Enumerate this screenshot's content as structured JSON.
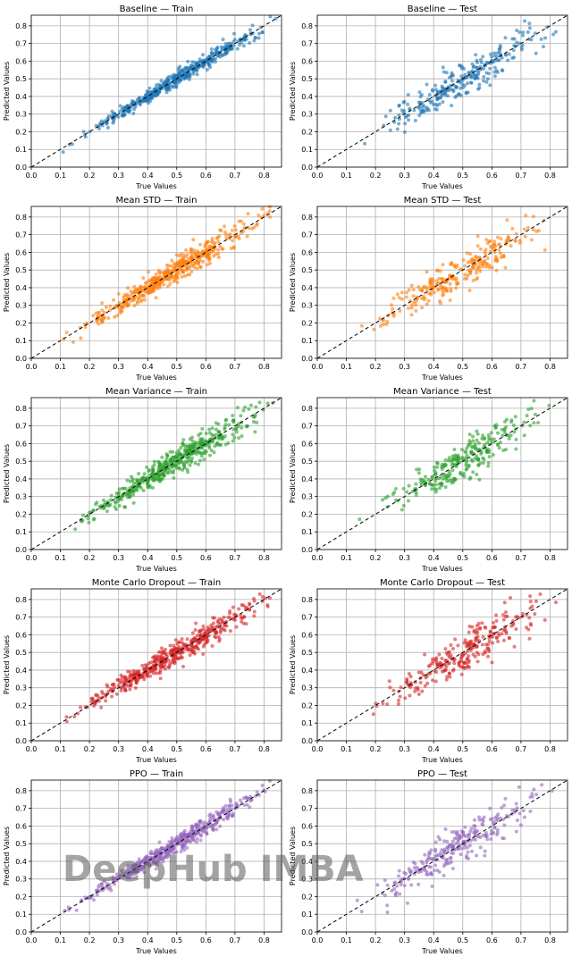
{
  "watermark": "DeepHub IMBA",
  "axis": {
    "xlabel": "True Values",
    "ylabel": "Predicted Values",
    "xlim": [
      0.0,
      0.86
    ],
    "ylim": [
      0.0,
      0.86
    ],
    "ticks": [
      "0.0",
      "0.1",
      "0.2",
      "0.3",
      "0.4",
      "0.5",
      "0.6",
      "0.7",
      "0.8"
    ],
    "grid": true,
    "reference_line": "y = x dashed black"
  },
  "chart_data": [
    {
      "type": "scatter",
      "title": "Baseline — Train",
      "method": "Baseline",
      "split": "Train",
      "color": "#1f77b4",
      "n": 480,
      "spread": 0.018,
      "seed": 11,
      "xrange": [
        0.02,
        0.84
      ]
    },
    {
      "type": "scatter",
      "title": "Baseline — Test",
      "method": "Baseline",
      "split": "Test",
      "color": "#1f77b4",
      "n": 260,
      "spread": 0.045,
      "seed": 12,
      "xrange": [
        0.06,
        0.82
      ]
    },
    {
      "type": "scatter",
      "title": "Mean STD — Train",
      "method": "Mean STD",
      "split": "Train",
      "color": "#ff7f0e",
      "n": 480,
      "spread": 0.03,
      "seed": 21,
      "xrange": [
        0.02,
        0.82
      ]
    },
    {
      "type": "scatter",
      "title": "Mean STD — Test",
      "method": "Mean STD",
      "split": "Test",
      "color": "#ff7f0e",
      "n": 260,
      "spread": 0.045,
      "seed": 22,
      "xrange": [
        0.06,
        0.82
      ]
    },
    {
      "type": "scatter",
      "title": "Mean Variance — Train",
      "method": "Mean Variance",
      "split": "Train",
      "color": "#2ca02c",
      "n": 480,
      "spread": 0.033,
      "seed": 31,
      "xrange": [
        0.02,
        0.83
      ]
    },
    {
      "type": "scatter",
      "title": "Mean Variance — Test",
      "method": "Mean Variance",
      "split": "Test",
      "color": "#2ca02c",
      "n": 260,
      "spread": 0.05,
      "seed": 32,
      "xrange": [
        0.06,
        0.82
      ]
    },
    {
      "type": "scatter",
      "title": "Monte Carlo Dropout — Train",
      "method": "Monte Carlo Dropout",
      "split": "Train",
      "color": "#d62728",
      "n": 480,
      "spread": 0.03,
      "seed": 41,
      "xrange": [
        0.02,
        0.82
      ]
    },
    {
      "type": "scatter",
      "title": "Monte Carlo Dropout — Test",
      "method": "Monte Carlo Dropout",
      "split": "Test",
      "color": "#d62728",
      "n": 260,
      "spread": 0.05,
      "seed": 42,
      "xrange": [
        0.06,
        0.82
      ]
    },
    {
      "type": "scatter",
      "title": "PPO — Train",
      "method": "PPO",
      "split": "Train",
      "color": "#9467bd",
      "n": 480,
      "spread": 0.022,
      "seed": 51,
      "xrange": [
        0.02,
        0.82
      ]
    },
    {
      "type": "scatter",
      "title": "PPO — Test",
      "method": "PPO",
      "split": "Test",
      "color": "#9467bd",
      "n": 260,
      "spread": 0.05,
      "seed": 52,
      "xrange": [
        0.06,
        0.82
      ]
    }
  ]
}
